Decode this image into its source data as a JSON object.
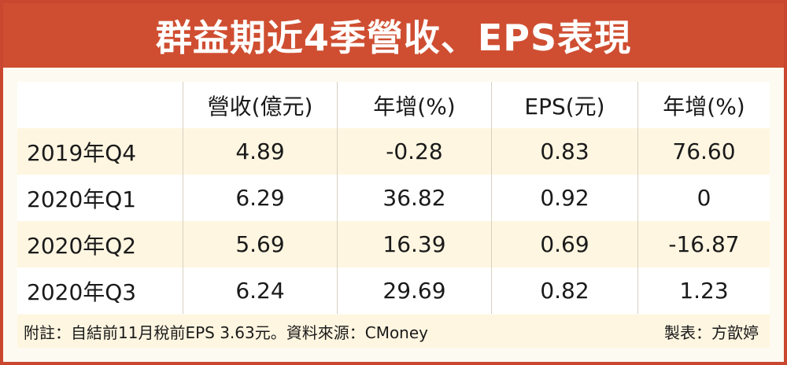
{
  "title": "群益期近4季營收、EPS表現",
  "table": {
    "headers": [
      "",
      "營收(億元)",
      "年增(%)",
      "EPS(元)",
      "年增(%)"
    ],
    "rows": [
      [
        "2019年Q4",
        "4.89",
        "-0.28",
        "0.83",
        "76.60"
      ],
      [
        "2020年Q1",
        "6.29",
        "36.82",
        "0.92",
        "0"
      ],
      [
        "2020年Q2",
        "5.69",
        "16.39",
        "0.69",
        "-16.87"
      ],
      [
        "2020年Q3",
        "6.24",
        "29.69",
        "0.82",
        "1.23"
      ]
    ]
  },
  "footer": {
    "note": "附註：自結前11月稅前EPS 3.63元。資料來源：CMoney",
    "credit": "製表：方歆婷"
  },
  "colors": {
    "title_background": "#cf4e31",
    "border": "#c9472f",
    "stripe": "#fff6e1"
  }
}
